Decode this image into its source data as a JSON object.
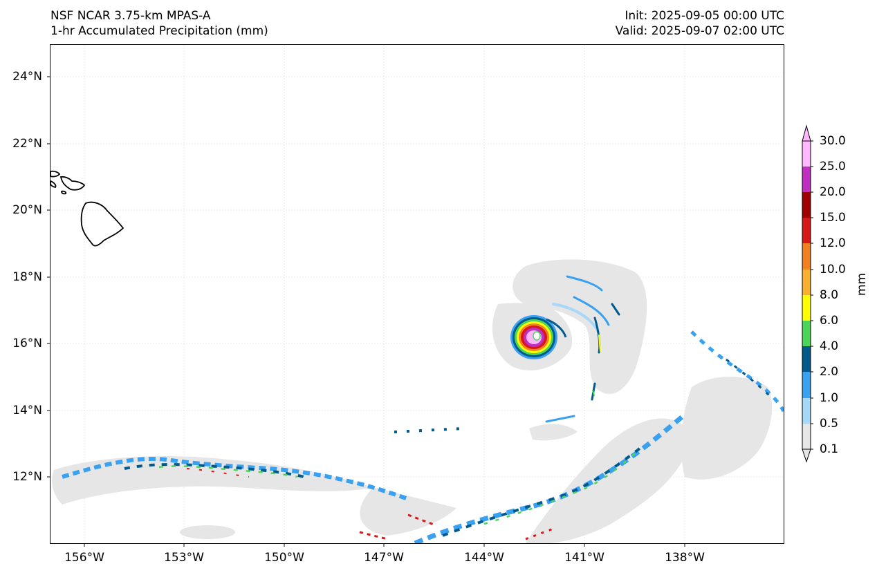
{
  "header": {
    "model": "NSF NCAR 3.75-km MPAS-A",
    "field": "1-hr Accumulated Precipitation (mm)",
    "init": "Init: 2025-09-05 00:00 UTC",
    "valid": "Valid: 2025-09-07 02:00 UTC"
  },
  "axes": {
    "lat_labels": [
      "24°N",
      "22°N",
      "20°N",
      "18°N",
      "16°N",
      "14°N",
      "12°N"
    ],
    "lon_labels": [
      "156°W",
      "153°W",
      "150°W",
      "147°W",
      "144°W",
      "141°W",
      "138°W"
    ]
  },
  "colorbar": {
    "unit": "mm",
    "levels": [
      "0.1",
      "0.5",
      "1.0",
      "2.0",
      "4.0",
      "6.0",
      "8.0",
      "10.0",
      "12.0",
      "15.0",
      "20.0",
      "25.0",
      "30.0"
    ],
    "colors": [
      "#e6e6e6",
      "#a8d8f8",
      "#3aa0f0",
      "#005a8c",
      "#4dd55a",
      "#ffff00",
      "#f8b030",
      "#f08020",
      "#d81818",
      "#a00000",
      "#c030c0",
      "#ffb8ff"
    ]
  }
}
